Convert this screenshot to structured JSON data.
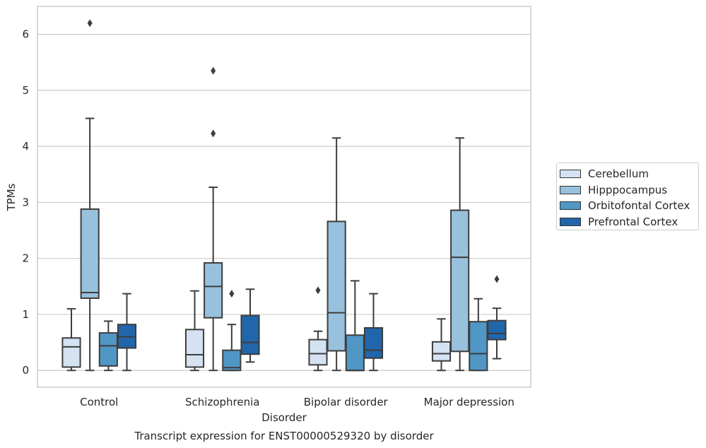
{
  "chart_data": {
    "type": "box",
    "title": "Transcript expression for ENST00000529320 by disorder",
    "xlabel": "Disorder",
    "ylabel": "TPMs",
    "ylim": [
      -0.3,
      6.5
    ],
    "yticks": [
      "0",
      "1",
      "2",
      "3",
      "4",
      "5",
      "6"
    ],
    "grid": "horizontal",
    "legend_position": "right",
    "categories": [
      "Control",
      "Schizophrenia",
      "Bipolar disorder",
      "Major depression"
    ],
    "series": [
      {
        "name": "Cerebellum",
        "color": "#d4e2f1",
        "boxes": [
          {
            "whislo": 0.0,
            "q1": 0.06,
            "med": 0.42,
            "q3": 0.58,
            "whishi": 1.1,
            "fliers": []
          },
          {
            "whislo": 0.0,
            "q1": 0.06,
            "med": 0.28,
            "q3": 0.73,
            "whishi": 1.42,
            "fliers": []
          },
          {
            "whislo": 0.0,
            "q1": 0.1,
            "med": 0.3,
            "q3": 0.55,
            "whishi": 0.7,
            "fliers": [
              1.43
            ]
          },
          {
            "whislo": 0.0,
            "q1": 0.17,
            "med": 0.3,
            "q3": 0.51,
            "whishi": 0.92,
            "fliers": []
          }
        ]
      },
      {
        "name": "Hipppocampus",
        "color": "#98c1dd",
        "boxes": [
          {
            "whislo": 0.0,
            "q1": 1.29,
            "med": 1.39,
            "q3": 2.88,
            "whishi": 4.5,
            "fliers": [
              6.2
            ]
          },
          {
            "whislo": 0.0,
            "q1": 0.94,
            "med": 1.5,
            "q3": 1.92,
            "whishi": 3.27,
            "fliers": [
              4.23,
              5.35
            ]
          },
          {
            "whislo": 0.0,
            "q1": 0.35,
            "med": 1.03,
            "q3": 2.66,
            "whishi": 4.15,
            "fliers": []
          },
          {
            "whislo": 0.0,
            "q1": 0.34,
            "med": 2.02,
            "q3": 2.86,
            "whishi": 4.15,
            "fliers": []
          }
        ]
      },
      {
        "name": "Orbitofontal Cortex",
        "color": "#5097c6",
        "boxes": [
          {
            "whislo": 0.0,
            "q1": 0.08,
            "med": 0.44,
            "q3": 0.67,
            "whishi": 0.88,
            "fliers": []
          },
          {
            "whislo": 0.0,
            "q1": 0.0,
            "med": 0.05,
            "q3": 0.36,
            "whishi": 0.82,
            "fliers": [
              1.37
            ]
          },
          {
            "whislo": 0.0,
            "q1": 0.0,
            "med": 0.0,
            "q3": 0.63,
            "whishi": 1.6,
            "fliers": []
          },
          {
            "whislo": 0.0,
            "q1": 0.0,
            "med": 0.3,
            "q3": 0.87,
            "whishi": 1.28,
            "fliers": []
          }
        ]
      },
      {
        "name": "Prefrontal Cortex",
        "color": "#2166ab",
        "boxes": [
          {
            "whislo": 0.0,
            "q1": 0.4,
            "med": 0.6,
            "q3": 0.82,
            "whishi": 1.37,
            "fliers": []
          },
          {
            "whislo": 0.15,
            "q1": 0.29,
            "med": 0.5,
            "q3": 0.98,
            "whishi": 1.45,
            "fliers": []
          },
          {
            "whislo": 0.0,
            "q1": 0.22,
            "med": 0.36,
            "q3": 0.76,
            "whishi": 1.37,
            "fliers": []
          },
          {
            "whislo": 0.21,
            "q1": 0.55,
            "med": 0.66,
            "q3": 0.89,
            "whishi": 1.11,
            "fliers": [
              1.63
            ]
          }
        ]
      }
    ]
  }
}
